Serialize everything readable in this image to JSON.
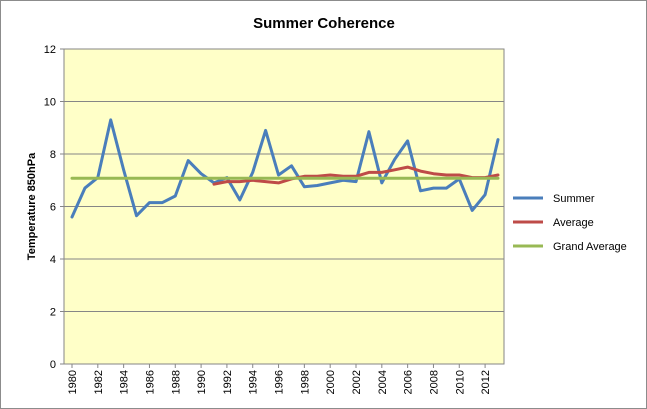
{
  "chart_data": {
    "type": "line",
    "title": "Summer Coherence",
    "xlabel": "",
    "ylabel": "Temperature 850hPa",
    "ylim": [
      0,
      12
    ],
    "yticks": [
      0,
      2,
      4,
      6,
      8,
      10,
      12
    ],
    "xlim": [
      1980,
      2013
    ],
    "xticks": [
      1980,
      1982,
      1984,
      1986,
      1988,
      1990,
      1992,
      1994,
      1996,
      1998,
      2000,
      2002,
      2004,
      2006,
      2008,
      2010,
      2012
    ],
    "grid": "horizontal",
    "legend_position": "right",
    "plot_background": "#ffffc8",
    "series": [
      {
        "name": "Summer",
        "color": "#4a7ebb",
        "x": [
          1980,
          1981,
          1982,
          1983,
          1984,
          1985,
          1986,
          1987,
          1988,
          1989,
          1990,
          1991,
          1992,
          1993,
          1994,
          1995,
          1996,
          1997,
          1998,
          1999,
          2000,
          2001,
          2002,
          2003,
          2004,
          2005,
          2006,
          2007,
          2008,
          2009,
          2010,
          2011,
          2012,
          2013
        ],
        "values": [
          5.6,
          6.7,
          7.1,
          9.3,
          7.4,
          5.65,
          6.15,
          6.15,
          6.4,
          7.75,
          7.25,
          6.9,
          7.1,
          6.25,
          7.3,
          8.9,
          7.2,
          7.55,
          6.75,
          6.8,
          6.9,
          7.0,
          6.95,
          8.85,
          6.9,
          7.8,
          8.5,
          6.6,
          6.7,
          6.7,
          7.05,
          5.85,
          6.45,
          8.55
        ]
      },
      {
        "name": "Average",
        "color": "#be4b48",
        "x": [
          1991,
          1992,
          1993,
          1994,
          1995,
          1996,
          1997,
          1998,
          1999,
          2000,
          2001,
          2002,
          2003,
          2004,
          2005,
          2006,
          2007,
          2008,
          2009,
          2010,
          2011,
          2012,
          2013
        ],
        "values": [
          6.85,
          6.95,
          6.95,
          7.0,
          6.95,
          6.9,
          7.05,
          7.15,
          7.15,
          7.2,
          7.15,
          7.15,
          7.3,
          7.3,
          7.4,
          7.5,
          7.35,
          7.25,
          7.2,
          7.2,
          7.1,
          7.1,
          7.2
        ]
      },
      {
        "name": "Grand Average",
        "color": "#98b954",
        "x": [
          1980,
          2013
        ],
        "values": [
          7.08,
          7.08
        ]
      }
    ]
  }
}
